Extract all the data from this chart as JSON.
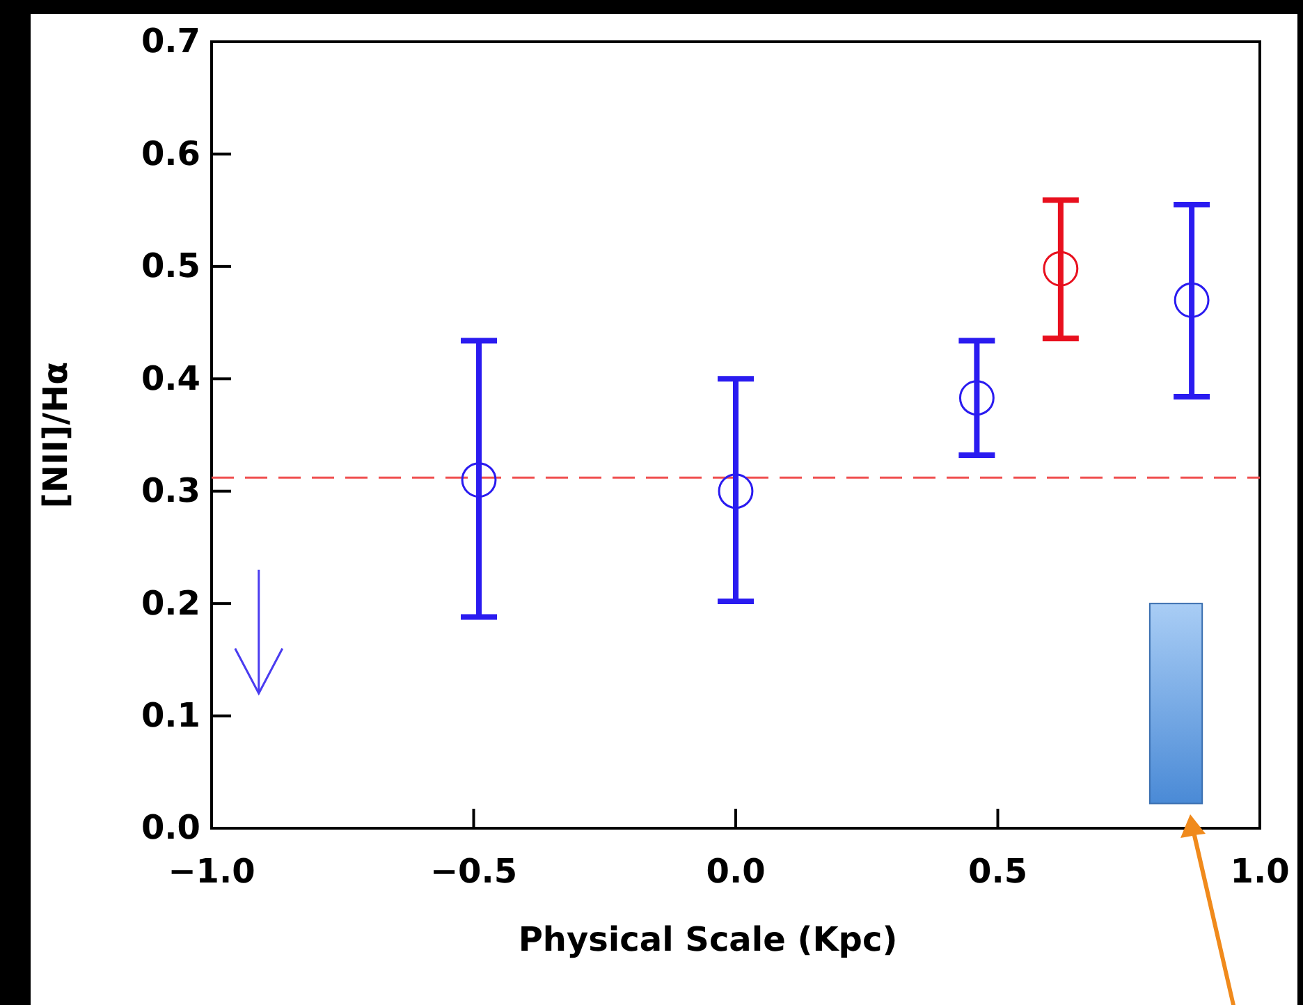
{
  "chart_data": {
    "type": "scatter",
    "xlabel": "Physical Scale (Kpc)",
    "ylabel": "[NII]/Hα",
    "x": [
      -0.49,
      0.0,
      0.46,
      0.62,
      0.87
    ],
    "values": [
      0.31,
      0.3,
      0.383,
      0.498,
      0.47
    ],
    "errors": [
      [
        0.188,
        0.434
      ],
      [
        0.202,
        0.4
      ],
      [
        0.332,
        0.434
      ],
      [
        0.436,
        0.559
      ],
      [
        0.384,
        0.555
      ]
    ],
    "colors": [
      "#2a1bf0",
      "#2a1bf0",
      "#2a1bf0",
      "#e8101e",
      "#2a1bf0"
    ],
    "marker": "circle",
    "xlim": [
      -1,
      1
    ],
    "ylim": [
      0,
      0.7
    ],
    "xticks": [
      {
        "value": -1,
        "label": "−1.0"
      },
      {
        "value": -0.5,
        "label": "−0.5"
      },
      {
        "value": 0,
        "label": "0.0"
      },
      {
        "value": 0.5,
        "label": "0.5"
      },
      {
        "value": 1,
        "label": "1.0"
      }
    ],
    "yticks": [
      {
        "value": 0,
        "label": "0.0"
      },
      {
        "value": 0.1,
        "label": "0.1"
      },
      {
        "value": 0.2,
        "label": "0.2"
      },
      {
        "value": 0.3,
        "label": "0.3"
      },
      {
        "value": 0.4,
        "label": "0.4"
      },
      {
        "value": 0.5,
        "label": "0.5"
      },
      {
        "value": 0.6,
        "label": "0.6"
      },
      {
        "value": 0.7,
        "label": "0.7"
      }
    ],
    "ref_lines": [
      {
        "axis": "y",
        "value": 0.312,
        "color": "#f05050",
        "line_style": "dashed"
      }
    ]
  }
}
